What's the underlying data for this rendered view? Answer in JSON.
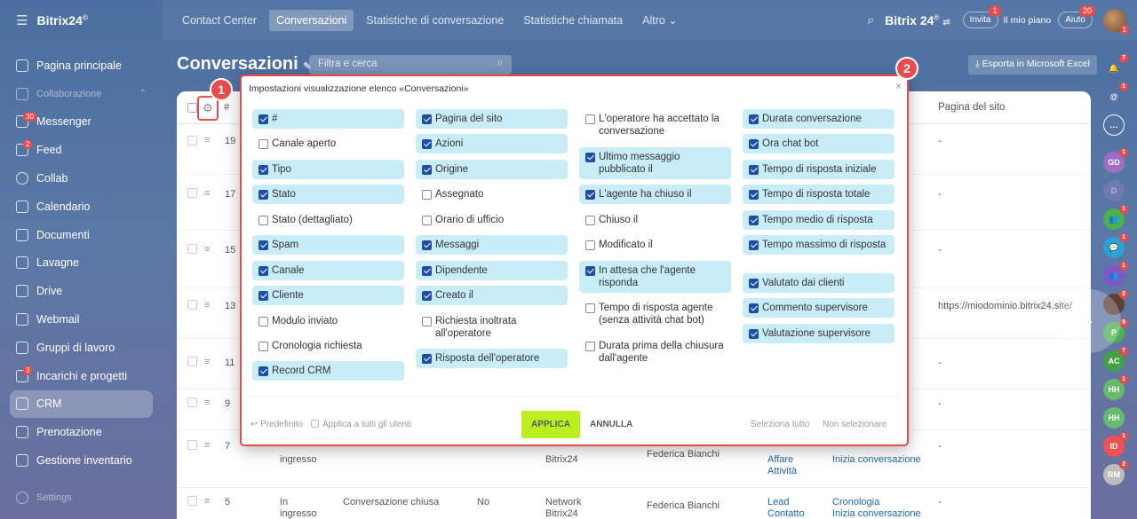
{
  "topbar": {
    "logo": "Bitrix24",
    "tabs": [
      "Contact Center",
      "Conversazioni",
      "Statistiche di conversazione",
      "Statistiche chiamata",
      "Altro"
    ],
    "brand": "Bitrix 24",
    "invite_label": "Invita",
    "invite_count": "1",
    "plan_label": "Il mio piano",
    "help_label": "Aiuto",
    "help_count": "20",
    "avatar_count": "1"
  },
  "leftmenu": {
    "items": [
      {
        "label": "Pagina principale",
        "icon": "home-icon"
      },
      {
        "label": "Collaborazione",
        "icon": "collab-icon"
      },
      {
        "label": "Messenger",
        "icon": "chat-icon",
        "badge": "30"
      },
      {
        "label": "Feed",
        "icon": "feed-icon",
        "badge": "2"
      },
      {
        "label": "Collab",
        "icon": "collab-circle-icon"
      },
      {
        "label": "Calendario",
        "icon": "calendar-icon"
      },
      {
        "label": "Documenti",
        "icon": "document-icon"
      },
      {
        "label": "Lavagne",
        "icon": "board-icon"
      },
      {
        "label": "Drive",
        "icon": "drive-icon"
      },
      {
        "label": "Webmail",
        "icon": "mail-icon"
      },
      {
        "label": "Gruppi di lavoro",
        "icon": "group-icon"
      },
      {
        "label": "Incarichi e progetti",
        "icon": "task-icon",
        "badge": "3"
      },
      {
        "label": "CRM",
        "icon": "crm-icon"
      },
      {
        "label": "Prenotazione",
        "icon": "booking-icon"
      },
      {
        "label": "Gestione inventario",
        "icon": "inventory-icon"
      },
      {
        "label": "Settings",
        "icon": "settings-icon"
      }
    ]
  },
  "page": {
    "title": "Conversazioni",
    "filter_placeholder": "Filtra e cerca",
    "export_label": "Esporta in Microsoft Excel",
    "col_hash": "#",
    "col_site": "Pagina del sito"
  },
  "rows": [
    {
      "num": "19",
      "site": "-"
    },
    {
      "num": "17",
      "site": "-"
    },
    {
      "num": "15",
      "site": "-"
    },
    {
      "num": "13",
      "site": "https://miodominio.bitrix24.site/"
    },
    {
      "num": "11",
      "site": "-"
    },
    {
      "num": "9",
      "site": "-"
    },
    {
      "num": "7",
      "site": "-",
      "c1": "ingresso",
      "c4": "Bitrix24",
      "c5": "Federica Bianchi",
      "c6a": "Affare",
      "c6b": "Attività",
      "c7": "Inizia conversazione"
    },
    {
      "num": "5",
      "site": "-",
      "c1a": "In",
      "c1b": "ingresso",
      "c2": "Conversazione chiusa",
      "c3": "No",
      "c4a": "Network",
      "c4b": "Bitrix24",
      "c5": "Federica Bianchi",
      "c6a": "Lead",
      "c6b": "Contatto",
      "c7a": "Cronologia",
      "c7b": "Inizia conversazione"
    }
  ],
  "dialog": {
    "title": "Impostazioni visualizzazione elenco «Conversazioni»",
    "columns": [
      [
        {
          "label": "#",
          "checked": true
        },
        {
          "label": "Canale aperto",
          "checked": false
        },
        {
          "label": "Tipo",
          "checked": true
        },
        {
          "label": "Stato",
          "checked": true
        },
        {
          "label": "Stato (dettagliato)",
          "checked": false
        },
        {
          "label": "Spam",
          "checked": true
        },
        {
          "label": "Canale",
          "checked": true
        },
        {
          "label": "Cliente",
          "checked": true
        },
        {
          "label": "Modulo inviato",
          "checked": false
        },
        {
          "label": "Cronologia richiesta",
          "checked": false
        },
        {
          "label": "Record CRM",
          "checked": true
        }
      ],
      [
        {
          "label": "Pagina del sito",
          "checked": true
        },
        {
          "label": "Azioni",
          "checked": true
        },
        {
          "label": "Origine",
          "checked": true
        },
        {
          "label": "Assegnato",
          "checked": false
        },
        {
          "label": "Orario di ufficio",
          "checked": false
        },
        {
          "label": "Messaggi",
          "checked": true
        },
        {
          "label": "Dipendente",
          "checked": true
        },
        {
          "label": "Creato il",
          "checked": true
        },
        {
          "label": "Richiesta inoltrata all'operatore",
          "checked": false
        },
        {
          "label": "Risposta dell'operatore",
          "checked": true
        }
      ],
      [
        {
          "label": "L'operatore ha accettato la conversazione",
          "checked": false
        },
        {
          "label": "Ultimo messaggio pubblicato il",
          "checked": true
        },
        {
          "label": "L'agente ha chiuso il",
          "checked": true
        },
        {
          "label": "Chiuso il",
          "checked": false
        },
        {
          "label": "Modificato il",
          "checked": false
        },
        {
          "label": "In attesa che l'agente risponda",
          "checked": true
        },
        {
          "label": "Tempo di risposta agente (senza attività chat bot)",
          "checked": false
        },
        {
          "label": "Durata prima della chiusura dall'agente",
          "checked": false
        }
      ],
      [
        {
          "label": "Durata conversazione",
          "checked": true
        },
        {
          "label": "Ora chat bot",
          "checked": true
        },
        {
          "label": "Tempo di risposta iniziale",
          "checked": true
        },
        {
          "label": "Tempo di risposta totale",
          "checked": true
        },
        {
          "label": "Tempo medio di risposta",
          "checked": true
        },
        {
          "label": "Tempo massimo di risposta",
          "checked": true
        },
        {
          "label": "Valutato dai clienti",
          "checked": true
        },
        {
          "label": "Commento supervisore",
          "checked": true
        },
        {
          "label": "Valutazione supervisore",
          "checked": true
        }
      ]
    ],
    "footer": {
      "default_label": "Predefinito",
      "apply_all_label": "Applica a tutti gli utenti",
      "apply_label": "APPLICA",
      "cancel_label": "ANNULLA",
      "select_all_label": "Seleziona tutto",
      "select_none_label": "Non selezionare"
    }
  },
  "markers": {
    "one": "1",
    "two": "2"
  },
  "rightrail": [
    {
      "initials": "",
      "count": "7",
      "color": "transparent",
      "icon": "bell-icon"
    },
    {
      "initials": "",
      "count": "1",
      "color": "transparent",
      "icon": "at-icon"
    },
    {
      "initials": "",
      "count": "",
      "color": "transparent",
      "icon": "chat-bubble-icon"
    },
    {
      "initials": "GD",
      "count": "1",
      "color": "#a26bc4"
    },
    {
      "initials": "D",
      "count": "",
      "color": "#8a7fc0"
    },
    {
      "initials": "",
      "count": "1",
      "color": "#4caf50"
    },
    {
      "initials": "",
      "count": "1",
      "color": "#29a3d4"
    },
    {
      "initials": "",
      "count": "1",
      "color": "#7e57c2"
    },
    {
      "initials": "",
      "count": "2",
      "color": "#5d4037"
    },
    {
      "initials": "P",
      "count": "9",
      "color": "#4caf50"
    },
    {
      "initials": "AC",
      "count": "7",
      "color": "#43a047"
    },
    {
      "initials": "HH",
      "count": "1",
      "color": "#66bb6a"
    },
    {
      "initials": "HH",
      "count": "",
      "color": "#66bb6a"
    },
    {
      "initials": "ID",
      "count": "1",
      "color": "#ef5350"
    },
    {
      "initials": "RM",
      "count": "2",
      "color": "#bdbdbd"
    }
  ]
}
